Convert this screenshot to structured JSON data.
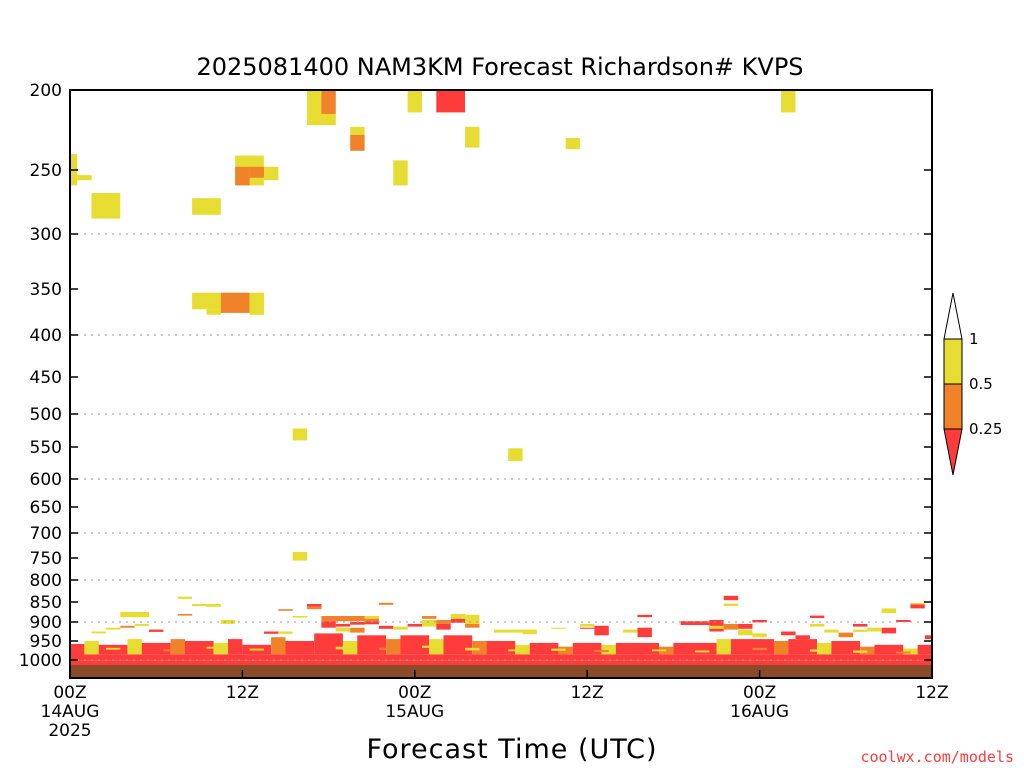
{
  "chart_data": {
    "type": "heatmap",
    "title": "2025081400 NAM3KM Forecast Richardson# KVPS",
    "xlabel": "Forecast Time (UTC)",
    "credit": "coolwx.com/models",
    "x_unit": "forecast hour",
    "xlim": [
      0,
      60
    ],
    "x_ticks": [
      {
        "x": 0,
        "lines": [
          "00Z",
          "14AUG",
          "2025"
        ]
      },
      {
        "x": 12,
        "lines": [
          "12Z"
        ]
      },
      {
        "x": 24,
        "lines": [
          "00Z",
          "15AUG"
        ]
      },
      {
        "x": 36,
        "lines": [
          "12Z"
        ]
      },
      {
        "x": 48,
        "lines": [
          "00Z",
          "16AUG"
        ]
      },
      {
        "x": 60,
        "lines": [
          "12Z"
        ]
      }
    ],
    "y_axis": "pressure (hPa), reversed",
    "ylim": [
      1025,
      200
    ],
    "y_ticks": [
      200,
      250,
      300,
      350,
      400,
      450,
      500,
      550,
      600,
      650,
      700,
      750,
      800,
      850,
      900,
      950,
      1000
    ],
    "gridlines_dotted": [
      300,
      400,
      500,
      600,
      700,
      800,
      900,
      1000
    ],
    "colorbar": {
      "orientation": "vertical",
      "ticks": [
        "1",
        "0.5",
        "0.25"
      ],
      "bins": [
        {
          "range": "> 1",
          "color": "#ffffff"
        },
        {
          "range": "0.5 - 1",
          "color": "#e6dc32"
        },
        {
          "range": "0.25 - 0.5",
          "color": "#f0822a"
        },
        {
          "range": "< 0.25",
          "color": "#ff3c3c"
        }
      ]
    },
    "ground_color": "#8c4b28",
    "colors": {
      "yellow": "#e6dc32",
      "orange": "#f0822a",
      "red": "#ff3c3c"
    },
    "cells": [
      {
        "x0": 0.0,
        "x1": 0.5,
        "p0": 240,
        "p1": 262,
        "c": "yellow"
      },
      {
        "x0": 0.5,
        "x1": 1.5,
        "p0": 254,
        "p1": 258,
        "c": "yellow"
      },
      {
        "x0": 1.5,
        "x1": 3.5,
        "p0": 268,
        "p1": 288,
        "c": "yellow"
      },
      {
        "x0": 8.5,
        "x1": 10.5,
        "p0": 272,
        "p1": 285,
        "c": "yellow"
      },
      {
        "x0": 11.5,
        "x1": 13.5,
        "p0": 241,
        "p1": 262,
        "c": "yellow"
      },
      {
        "x0": 11.5,
        "x1": 12.5,
        "p0": 248,
        "p1": 262,
        "c": "orange"
      },
      {
        "x0": 12.5,
        "x1": 13.5,
        "p0": 248,
        "p1": 256,
        "c": "orange"
      },
      {
        "x0": 13.5,
        "x1": 14.5,
        "p0": 248,
        "p1": 258,
        "c": "yellow"
      },
      {
        "x0": 8.5,
        "x1": 10.5,
        "p0": 354,
        "p1": 372,
        "c": "yellow"
      },
      {
        "x0": 9.5,
        "x1": 10.5,
        "p0": 372,
        "p1": 378,
        "c": "yellow"
      },
      {
        "x0": 10.5,
        "x1": 12.5,
        "p0": 354,
        "p1": 376,
        "c": "orange"
      },
      {
        "x0": 12.5,
        "x1": 13.5,
        "p0": 354,
        "p1": 378,
        "c": "yellow"
      },
      {
        "x0": 16.5,
        "x1": 17.5,
        "p0": 200,
        "p1": 222,
        "c": "yellow"
      },
      {
        "x0": 17.5,
        "x1": 18.5,
        "p0": 200,
        "p1": 215,
        "c": "orange"
      },
      {
        "x0": 17.5,
        "x1": 18.5,
        "p0": 215,
        "p1": 222,
        "c": "yellow"
      },
      {
        "x0": 19.5,
        "x1": 20.5,
        "p0": 223,
        "p1": 228,
        "c": "yellow"
      },
      {
        "x0": 19.5,
        "x1": 20.5,
        "p0": 228,
        "p1": 238,
        "c": "orange"
      },
      {
        "x0": 22.5,
        "x1": 23.5,
        "p0": 244,
        "p1": 262,
        "c": "yellow"
      },
      {
        "x0": 23.5,
        "x1": 24.5,
        "p0": 200,
        "p1": 214,
        "c": "yellow"
      },
      {
        "x0": 25.5,
        "x1": 27.5,
        "p0": 200,
        "p1": 214,
        "c": "red"
      },
      {
        "x0": 27.5,
        "x1": 28.5,
        "p0": 223,
        "p1": 236,
        "c": "yellow"
      },
      {
        "x0": 34.5,
        "x1": 35.5,
        "p0": 230,
        "p1": 237,
        "c": "yellow"
      },
      {
        "x0": 49.5,
        "x1": 50.5,
        "p0": 200,
        "p1": 214,
        "c": "yellow"
      },
      {
        "x0": 15.5,
        "x1": 16.5,
        "p0": 522,
        "p1": 540,
        "c": "yellow"
      },
      {
        "x0": 30.5,
        "x1": 31.5,
        "p0": 552,
        "p1": 572,
        "c": "yellow"
      },
      {
        "x0": 15.5,
        "x1": 16.5,
        "p0": 738,
        "p1": 756,
        "c": "yellow"
      },
      {
        "x0": 7.5,
        "x1": 8.5,
        "p0": 838,
        "p1": 843,
        "c": "yellow"
      },
      {
        "x0": 8.5,
        "x1": 9.5,
        "p0": 855,
        "p1": 860,
        "c": "yellow"
      },
      {
        "x0": 9.5,
        "x1": 10.5,
        "p0": 855,
        "p1": 862,
        "c": "yellow"
      },
      {
        "x0": 3.5,
        "x1": 5.5,
        "p0": 875,
        "p1": 888,
        "c": "yellow"
      },
      {
        "x0": 14.5,
        "x1": 15.5,
        "p0": 868,
        "p1": 872,
        "c": "orange"
      },
      {
        "x0": 16.5,
        "x1": 17.5,
        "p0": 855,
        "p1": 862,
        "c": "red"
      },
      {
        "x0": 16.5,
        "x1": 17.5,
        "p0": 862,
        "p1": 868,
        "c": "orange"
      },
      {
        "x0": 21.5,
        "x1": 22.5,
        "p0": 852,
        "p1": 857,
        "c": "orange"
      },
      {
        "x0": 45.5,
        "x1": 46.5,
        "p0": 836,
        "p1": 846,
        "c": "red"
      },
      {
        "x0": 45.5,
        "x1": 46.5,
        "p0": 854,
        "p1": 860,
        "c": "yellow"
      },
      {
        "x0": 56.5,
        "x1": 57.5,
        "p0": 866,
        "p1": 878,
        "c": "yellow"
      },
      {
        "x0": 58.5,
        "x1": 59.5,
        "p0": 852,
        "p1": 856,
        "c": "yellow"
      },
      {
        "x0": 58.5,
        "x1": 59.5,
        "p0": 856,
        "p1": 866,
        "c": "red"
      },
      {
        "x0": 7.5,
        "x1": 8.5,
        "p0": 880,
        "p1": 884,
        "c": "orange"
      },
      {
        "x0": 10.5,
        "x1": 11.5,
        "p0": 895,
        "p1": 905,
        "c": "yellow"
      },
      {
        "x0": 15.5,
        "x1": 16.5,
        "p0": 885,
        "p1": 889,
        "c": "yellow"
      },
      {
        "x0": 17.5,
        "x1": 21.5,
        "p0": 885,
        "p1": 898,
        "c": "orange"
      },
      {
        "x0": 20.5,
        "x1": 21.5,
        "p0": 885,
        "p1": 892,
        "c": "yellow"
      },
      {
        "x0": 24.5,
        "x1": 25.5,
        "p0": 885,
        "p1": 892,
        "c": "orange"
      },
      {
        "x0": 26.5,
        "x1": 27.5,
        "p0": 880,
        "p1": 892,
        "c": "yellow"
      },
      {
        "x0": 27.5,
        "x1": 28.5,
        "p0": 882,
        "p1": 905,
        "c": "yellow"
      },
      {
        "x0": 35.5,
        "x1": 36.5,
        "p0": 905,
        "p1": 912,
        "c": "yellow"
      },
      {
        "x0": 39.5,
        "x1": 40.5,
        "p0": 882,
        "p1": 888,
        "c": "red"
      },
      {
        "x0": 51.5,
        "x1": 52.5,
        "p0": 884,
        "p1": 890,
        "c": "red"
      },
      {
        "x0": 47.5,
        "x1": 48.5,
        "p0": 895,
        "p1": 901,
        "c": "red"
      },
      {
        "x0": 54.5,
        "x1": 55.5,
        "p0": 905,
        "p1": 912,
        "c": "red"
      },
      {
        "x0": 57.5,
        "x1": 58.5,
        "p0": 895,
        "p1": 900,
        "c": "red"
      },
      {
        "x0": 1.5,
        "x1": 2.5,
        "p0": 925,
        "p1": 930,
        "c": "yellow"
      },
      {
        "x0": 2.5,
        "x1": 3.5,
        "p0": 915,
        "p1": 920,
        "c": "yellow"
      },
      {
        "x0": 3.5,
        "x1": 4.5,
        "p0": 910,
        "p1": 915,
        "c": "orange"
      },
      {
        "x0": 4.5,
        "x1": 5.5,
        "p0": 905,
        "p1": 910,
        "c": "yellow"
      },
      {
        "x0": 5.5,
        "x1": 6.5,
        "p0": 920,
        "p1": 926,
        "c": "red"
      },
      {
        "x0": 13.5,
        "x1": 14.5,
        "p0": 925,
        "p1": 931,
        "c": "red"
      },
      {
        "x0": 14.5,
        "x1": 15.5,
        "p0": 925,
        "p1": 931,
        "c": "yellow"
      },
      {
        "x0": 17.5,
        "x1": 18.5,
        "p0": 898,
        "p1": 915,
        "c": "red"
      },
      {
        "x0": 18.5,
        "x1": 19.5,
        "p0": 905,
        "p1": 912,
        "c": "red"
      },
      {
        "x0": 18.5,
        "x1": 19.5,
        "p0": 915,
        "p1": 925,
        "c": "yellow"
      },
      {
        "x0": 19.5,
        "x1": 20.5,
        "p0": 900,
        "p1": 907,
        "c": "red"
      },
      {
        "x0": 19.5,
        "x1": 20.5,
        "p0": 915,
        "p1": 928,
        "c": "orange"
      },
      {
        "x0": 20.5,
        "x1": 21.5,
        "p0": 898,
        "p1": 906,
        "c": "red"
      },
      {
        "x0": 21.5,
        "x1": 22.5,
        "p0": 910,
        "p1": 918,
        "c": "red"
      },
      {
        "x0": 22.5,
        "x1": 23.5,
        "p0": 912,
        "p1": 920,
        "c": "yellow"
      },
      {
        "x0": 23.5,
        "x1": 24.5,
        "p0": 905,
        "p1": 912,
        "c": "red"
      },
      {
        "x0": 24.5,
        "x1": 25.5,
        "p0": 895,
        "p1": 912,
        "c": "yellow"
      },
      {
        "x0": 25.5,
        "x1": 26.5,
        "p0": 895,
        "p1": 905,
        "c": "orange"
      },
      {
        "x0": 25.5,
        "x1": 26.5,
        "p0": 905,
        "p1": 920,
        "c": "red"
      },
      {
        "x0": 26.5,
        "x1": 27.5,
        "p0": 892,
        "p1": 902,
        "c": "red"
      },
      {
        "x0": 27.5,
        "x1": 28.5,
        "p0": 905,
        "p1": 915,
        "c": "orange"
      },
      {
        "x0": 29.5,
        "x1": 31.5,
        "p0": 920,
        "p1": 928,
        "c": "yellow"
      },
      {
        "x0": 31.5,
        "x1": 32.5,
        "p0": 920,
        "p1": 932,
        "c": "yellow"
      },
      {
        "x0": 33.5,
        "x1": 34.5,
        "p0": 915,
        "p1": 918,
        "c": "yellow"
      },
      {
        "x0": 35.5,
        "x1": 36.5,
        "p0": 915,
        "p1": 918,
        "c": "red"
      },
      {
        "x0": 36.5,
        "x1": 37.5,
        "p0": 910,
        "p1": 935,
        "c": "red"
      },
      {
        "x0": 38.5,
        "x1": 39.5,
        "p0": 920,
        "p1": 928,
        "c": "yellow"
      },
      {
        "x0": 39.5,
        "x1": 40.5,
        "p0": 915,
        "p1": 940,
        "c": "red"
      },
      {
        "x0": 42.5,
        "x1": 44.5,
        "p0": 898,
        "p1": 908,
        "c": "red"
      },
      {
        "x0": 44.5,
        "x1": 45.5,
        "p0": 895,
        "p1": 925,
        "c": "red"
      },
      {
        "x0": 44.5,
        "x1": 45.5,
        "p0": 910,
        "p1": 918,
        "c": "yellow"
      },
      {
        "x0": 45.5,
        "x1": 46.5,
        "p0": 905,
        "p1": 920,
        "c": "orange"
      },
      {
        "x0": 46.5,
        "x1": 47.5,
        "p0": 905,
        "p1": 918,
        "c": "red"
      },
      {
        "x0": 46.5,
        "x1": 47.5,
        "p0": 920,
        "p1": 935,
        "c": "yellow"
      },
      {
        "x0": 47.5,
        "x1": 48.5,
        "p0": 930,
        "p1": 940,
        "c": "yellow"
      },
      {
        "x0": 49.5,
        "x1": 50.5,
        "p0": 925,
        "p1": 935,
        "c": "red"
      },
      {
        "x0": 50.5,
        "x1": 51.5,
        "p0": 935,
        "p1": 945,
        "c": "red"
      },
      {
        "x0": 51.5,
        "x1": 52.5,
        "p0": 905,
        "p1": 912,
        "c": "yellow"
      },
      {
        "x0": 52.5,
        "x1": 53.5,
        "p0": 920,
        "p1": 928,
        "c": "yellow"
      },
      {
        "x0": 53.5,
        "x1": 54.5,
        "p0": 928,
        "p1": 940,
        "c": "orange"
      },
      {
        "x0": 54.5,
        "x1": 55.5,
        "p0": 920,
        "p1": 926,
        "c": "yellow"
      },
      {
        "x0": 55.5,
        "x1": 56.5,
        "p0": 915,
        "p1": 925,
        "c": "yellow"
      },
      {
        "x0": 56.5,
        "x1": 57.5,
        "p0": 915,
        "p1": 930,
        "c": "red"
      },
      {
        "x0": 59.5,
        "x1": 60.0,
        "p0": 935,
        "p1": 945,
        "c": "red"
      },
      {
        "x0": 0.0,
        "x1": 60.0,
        "p0": 985,
        "p1": 1001,
        "c": "red"
      },
      {
        "x0": 0.0,
        "x1": 60.0,
        "p0": 1001,
        "p1": 1007,
        "c": "red"
      },
      {
        "x0": 0.0,
        "x1": 1.0,
        "p0": 958,
        "p1": 990,
        "c": "red"
      },
      {
        "x0": 1.0,
        "x1": 2.0,
        "p0": 950,
        "p1": 985,
        "c": "yellow"
      },
      {
        "x0": 2.0,
        "x1": 4.0,
        "p0": 960,
        "p1": 985,
        "c": "red"
      },
      {
        "x0": 4.0,
        "x1": 5.0,
        "p0": 945,
        "p1": 985,
        "c": "yellow"
      },
      {
        "x0": 5.0,
        "x1": 7.0,
        "p0": 955,
        "p1": 985,
        "c": "red"
      },
      {
        "x0": 7.0,
        "x1": 8.0,
        "p0": 945,
        "p1": 985,
        "c": "orange"
      },
      {
        "x0": 8.0,
        "x1": 10.0,
        "p0": 950,
        "p1": 985,
        "c": "red"
      },
      {
        "x0": 10.0,
        "x1": 11.0,
        "p0": 955,
        "p1": 985,
        "c": "yellow"
      },
      {
        "x0": 11.0,
        "x1": 12.0,
        "p0": 945,
        "p1": 985,
        "c": "red"
      },
      {
        "x0": 12.0,
        "x1": 14.0,
        "p0": 960,
        "p1": 985,
        "c": "red"
      },
      {
        "x0": 14.0,
        "x1": 15.0,
        "p0": 940,
        "p1": 985,
        "c": "orange"
      },
      {
        "x0": 15.0,
        "x1": 17.0,
        "p0": 950,
        "p1": 985,
        "c": "red"
      },
      {
        "x0": 17.0,
        "x1": 19.0,
        "p0": 930,
        "p1": 985,
        "c": "red"
      },
      {
        "x0": 19.0,
        "x1": 20.0,
        "p0": 950,
        "p1": 985,
        "c": "yellow"
      },
      {
        "x0": 20.0,
        "x1": 22.0,
        "p0": 935,
        "p1": 985,
        "c": "red"
      },
      {
        "x0": 22.0,
        "x1": 23.0,
        "p0": 945,
        "p1": 985,
        "c": "orange"
      },
      {
        "x0": 23.0,
        "x1": 25.0,
        "p0": 935,
        "p1": 985,
        "c": "red"
      },
      {
        "x0": 25.0,
        "x1": 26.0,
        "p0": 945,
        "p1": 985,
        "c": "yellow"
      },
      {
        "x0": 26.0,
        "x1": 28.0,
        "p0": 935,
        "p1": 985,
        "c": "red"
      },
      {
        "x0": 28.0,
        "x1": 29.0,
        "p0": 950,
        "p1": 985,
        "c": "orange"
      },
      {
        "x0": 29.0,
        "x1": 31.0,
        "p0": 950,
        "p1": 985,
        "c": "red"
      },
      {
        "x0": 31.0,
        "x1": 32.0,
        "p0": 960,
        "p1": 985,
        "c": "yellow"
      },
      {
        "x0": 32.0,
        "x1": 34.0,
        "p0": 955,
        "p1": 985,
        "c": "red"
      },
      {
        "x0": 34.0,
        "x1": 35.0,
        "p0": 965,
        "p1": 985,
        "c": "orange"
      },
      {
        "x0": 35.0,
        "x1": 37.0,
        "p0": 955,
        "p1": 985,
        "c": "red"
      },
      {
        "x0": 37.0,
        "x1": 38.0,
        "p0": 960,
        "p1": 985,
        "c": "yellow"
      },
      {
        "x0": 38.0,
        "x1": 41.0,
        "p0": 955,
        "p1": 985,
        "c": "red"
      },
      {
        "x0": 41.0,
        "x1": 42.0,
        "p0": 965,
        "p1": 985,
        "c": "orange"
      },
      {
        "x0": 42.0,
        "x1": 45.0,
        "p0": 955,
        "p1": 985,
        "c": "red"
      },
      {
        "x0": 45.0,
        "x1": 46.0,
        "p0": 945,
        "p1": 985,
        "c": "yellow"
      },
      {
        "x0": 46.0,
        "x1": 49.0,
        "p0": 945,
        "p1": 985,
        "c": "red"
      },
      {
        "x0": 49.0,
        "x1": 50.0,
        "p0": 950,
        "p1": 985,
        "c": "orange"
      },
      {
        "x0": 50.0,
        "x1": 52.0,
        "p0": 945,
        "p1": 985,
        "c": "red"
      },
      {
        "x0": 52.0,
        "x1": 53.0,
        "p0": 955,
        "p1": 985,
        "c": "yellow"
      },
      {
        "x0": 53.0,
        "x1": 55.0,
        "p0": 950,
        "p1": 985,
        "c": "red"
      },
      {
        "x0": 55.0,
        "x1": 56.0,
        "p0": 965,
        "p1": 985,
        "c": "orange"
      },
      {
        "x0": 56.0,
        "x1": 58.0,
        "p0": 960,
        "p1": 985,
        "c": "red"
      },
      {
        "x0": 58.0,
        "x1": 59.0,
        "p0": 970,
        "p1": 985,
        "c": "yellow"
      },
      {
        "x0": 59.0,
        "x1": 60.0,
        "p0": 960,
        "p1": 985,
        "c": "red"
      },
      {
        "x0": 2.5,
        "x1": 3.5,
        "p0": 968,
        "p1": 973,
        "c": "yellow"
      },
      {
        "x0": 6.5,
        "x1": 7.5,
        "p0": 972,
        "p1": 977,
        "c": "orange"
      },
      {
        "x0": 9.5,
        "x1": 10.5,
        "p0": 965,
        "p1": 970,
        "c": "yellow"
      },
      {
        "x0": 12.5,
        "x1": 13.5,
        "p0": 970,
        "p1": 975,
        "c": "yellow"
      },
      {
        "x0": 18.5,
        "x1": 19.5,
        "p0": 965,
        "p1": 972,
        "c": "yellow"
      },
      {
        "x0": 21.5,
        "x1": 22.5,
        "p0": 968,
        "p1": 974,
        "c": "orange"
      },
      {
        "x0": 24.5,
        "x1": 25.5,
        "p0": 962,
        "p1": 968,
        "c": "yellow"
      },
      {
        "x0": 27.5,
        "x1": 28.5,
        "p0": 968,
        "p1": 975,
        "c": "yellow"
      },
      {
        "x0": 30.5,
        "x1": 31.5,
        "p0": 972,
        "p1": 977,
        "c": "yellow"
      },
      {
        "x0": 33.5,
        "x1": 34.5,
        "p0": 970,
        "p1": 976,
        "c": "yellow"
      },
      {
        "x0": 36.5,
        "x1": 37.5,
        "p0": 974,
        "p1": 979,
        "c": "orange"
      },
      {
        "x0": 40.5,
        "x1": 41.5,
        "p0": 972,
        "p1": 977,
        "c": "yellow"
      },
      {
        "x0": 43.5,
        "x1": 44.5,
        "p0": 975,
        "p1": 980,
        "c": "yellow"
      },
      {
        "x0": 47.5,
        "x1": 48.5,
        "p0": 968,
        "p1": 974,
        "c": "orange"
      },
      {
        "x0": 51.5,
        "x1": 52.5,
        "p0": 972,
        "p1": 978,
        "c": "yellow"
      },
      {
        "x0": 54.5,
        "x1": 55.5,
        "p0": 975,
        "p1": 981,
        "c": "yellow"
      },
      {
        "x0": 57.5,
        "x1": 58.5,
        "p0": 978,
        "p1": 983,
        "c": "orange"
      },
      {
        "x0": 0.0,
        "x1": 60.0,
        "p0": 1007,
        "p1": 1025,
        "c": "ground"
      }
    ]
  }
}
